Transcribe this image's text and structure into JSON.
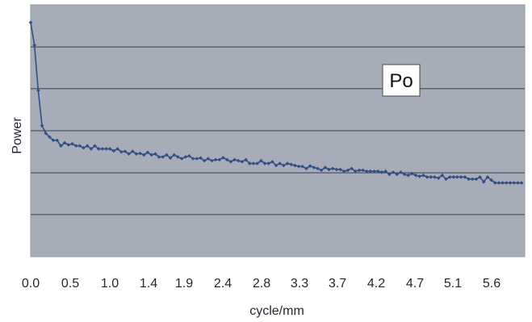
{
  "chart_data": {
    "type": "line",
    "title": "",
    "xlabel": "cycle/mm",
    "ylabel": "Power",
    "xlim": [
      0,
      6.15
    ],
    "ylim": [
      0,
      1
    ],
    "grid": {
      "x": false,
      "y": true
    },
    "x_tick_labels": [
      "0.0",
      "0.5",
      "1.0",
      "1.4",
      "1.9",
      "2.4",
      "2.8",
      "3.3",
      "3.7",
      "4.2",
      "4.7",
      "5.1",
      "5.6"
    ],
    "legend": {
      "labels": [
        "Po"
      ],
      "position": "top-right"
    },
    "series": [
      {
        "name": "Po",
        "color": "#2f4f83",
        "marker": "diamond",
        "x": [
          0.0,
          0.047,
          0.094,
          0.141,
          0.188,
          0.235,
          0.282,
          0.329,
          0.376,
          0.423,
          0.47,
          0.517,
          0.564,
          0.611,
          0.658,
          0.705,
          0.752,
          0.799,
          0.846,
          0.893,
          0.94,
          0.987,
          1.034,
          1.081,
          1.128,
          1.175,
          1.222,
          1.269,
          1.316,
          1.363,
          1.41,
          1.457,
          1.504,
          1.551,
          1.598,
          1.645,
          1.692,
          1.739,
          1.786,
          1.833,
          1.88,
          1.927,
          1.974,
          2.021,
          2.068,
          2.115,
          2.162,
          2.209,
          2.256,
          2.303,
          2.35,
          2.397,
          2.444,
          2.491,
          2.538,
          2.585,
          2.632,
          2.679,
          2.726,
          2.773,
          2.82,
          2.867,
          2.914,
          2.961,
          3.008,
          3.055,
          3.102,
          3.149,
          3.196,
          3.243,
          3.29,
          3.337,
          3.384,
          3.431,
          3.478,
          3.525,
          3.572,
          3.619,
          3.666,
          3.713,
          3.76,
          3.807,
          3.854,
          3.901,
          3.948,
          3.995,
          4.042,
          4.089,
          4.136,
          4.183,
          4.23,
          4.277,
          4.324,
          4.371,
          4.418,
          4.465,
          4.512,
          4.559,
          4.606,
          4.653,
          4.7,
          4.747,
          4.794,
          4.841,
          4.888,
          4.935,
          4.982,
          5.029,
          5.076,
          5.123,
          5.17,
          5.217,
          5.264,
          5.311,
          5.358,
          5.405,
          5.452,
          5.499,
          5.546,
          5.593,
          5.64,
          5.687,
          5.734,
          5.781,
          5.828,
          5.875,
          5.922,
          5.969,
          6.016,
          6.063,
          6.11
        ],
        "y": [
          0.93,
          0.84,
          0.66,
          0.52,
          0.49,
          0.475,
          0.462,
          0.462,
          0.44,
          0.452,
          0.444,
          0.448,
          0.44,
          0.44,
          0.432,
          0.44,
          0.428,
          0.44,
          0.428,
          0.428,
          0.428,
          0.428,
          0.42,
          0.428,
          0.416,
          0.418,
          0.408,
          0.418,
          0.408,
          0.41,
          0.404,
          0.414,
          0.404,
          0.408,
          0.396,
          0.396,
          0.404,
          0.392,
          0.404,
          0.396,
          0.389,
          0.396,
          0.4,
          0.389,
          0.389,
          0.392,
          0.381,
          0.389,
          0.381,
          0.385,
          0.385,
          0.393,
          0.385,
          0.377,
          0.385,
          0.381,
          0.377,
          0.385,
          0.37,
          0.37,
          0.37,
          0.381,
          0.37,
          0.37,
          0.377,
          0.362,
          0.37,
          0.362,
          0.37,
          0.366,
          0.362,
          0.358,
          0.358,
          0.35,
          0.36,
          0.354,
          0.35,
          0.343,
          0.354,
          0.346,
          0.35,
          0.346,
          0.346,
          0.339,
          0.343,
          0.35,
          0.339,
          0.343,
          0.343,
          0.339,
          0.339,
          0.339,
          0.339,
          0.335,
          0.339,
          0.327,
          0.335,
          0.327,
          0.335,
          0.327,
          0.323,
          0.33,
          0.323,
          0.319,
          0.323,
          0.316,
          0.316,
          0.316,
          0.312,
          0.323,
          0.308,
          0.316,
          0.316,
          0.316,
          0.316,
          0.316,
          0.308,
          0.308,
          0.308,
          0.316,
          0.297,
          0.316,
          0.304,
          0.293,
          0.293,
          0.293,
          0.293,
          0.293,
          0.293,
          0.293,
          0.293
        ]
      }
    ]
  }
}
